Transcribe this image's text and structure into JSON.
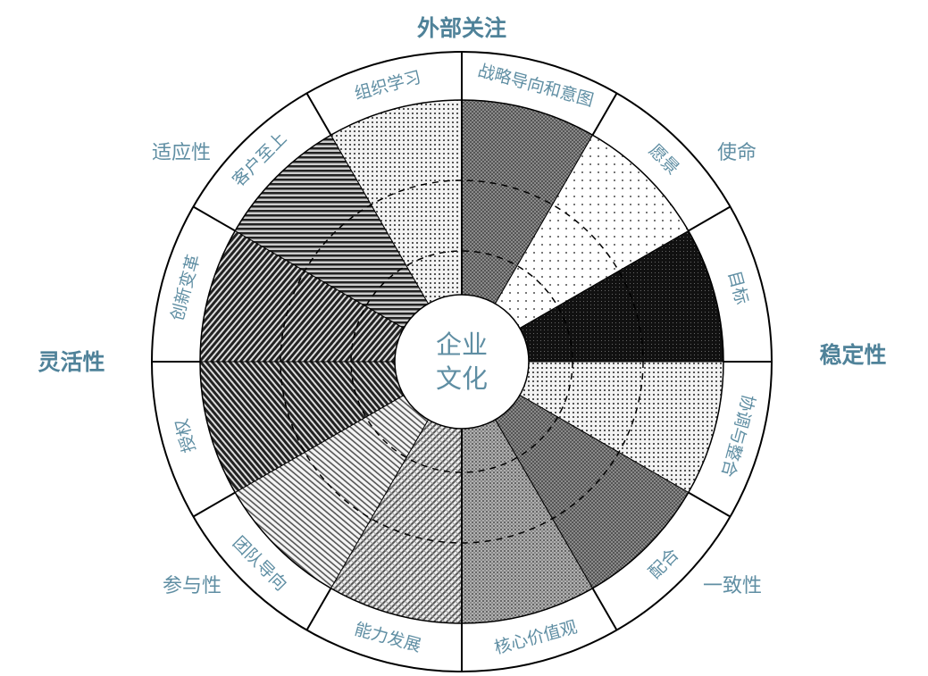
{
  "center": {
    "line1": "企业",
    "line2": "文化"
  },
  "axes": {
    "top": "外部关注",
    "right": "稳定性",
    "left": "灵活性"
  },
  "traits": {
    "adaptability": "适应性",
    "mission": "使命",
    "consistency": "一致性",
    "involvement": "参与性"
  },
  "segments": [
    {
      "label": "战略导向和意图",
      "pattern": "dark-checker"
    },
    {
      "label": "愿景",
      "pattern": "sparse-dots"
    },
    {
      "label": "目标",
      "pattern": "black-dense"
    },
    {
      "label": "协调与整合",
      "pattern": "light-dots"
    },
    {
      "label": "配合",
      "pattern": "dark-checker"
    },
    {
      "label": "核心价值观",
      "pattern": "mid-checker"
    },
    {
      "label": "能力发展",
      "pattern": "cross-hatch"
    },
    {
      "label": "团队导向",
      "pattern": "light-diagonal"
    },
    {
      "label": "授权",
      "pattern": "dark-diagonal"
    },
    {
      "label": "创新变革",
      "pattern": "dark-diagonal-rev"
    },
    {
      "label": "客户至上",
      "pattern": "horizontal-stripes"
    },
    {
      "label": "组织学习",
      "pattern": "light-dots"
    }
  ],
  "colors": {
    "text": "#5f8ea3",
    "line": "#000000"
  }
}
